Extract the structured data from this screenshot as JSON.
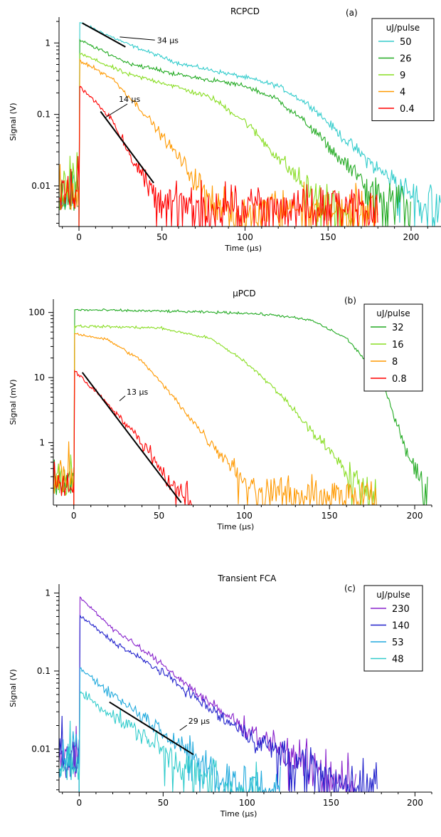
{
  "chart_data": [
    {
      "type": "line",
      "title": "RCPCD",
      "panel_label": "(a)",
      "xlabel": "Time (µs)",
      "ylabel": "Signal (V)",
      "xlim": [
        -12,
        218
      ],
      "ylim": [
        0.0027,
        2.3
      ],
      "yscale": "log",
      "x_ticks": [
        0,
        50,
        100,
        150,
        200
      ],
      "y_ticks": [
        {
          "value": 0.01,
          "label": "0.01"
        },
        {
          "value": 0.1,
          "label": "0.1"
        },
        {
          "value": 1,
          "label": "1"
        }
      ],
      "legend": {
        "title": "uJ/pulse",
        "placement": "top-right"
      },
      "noise_floor": 0.0045,
      "series": [
        {
          "name": "50",
          "color": "#33cccc",
          "x_end": 218,
          "points": [
            [
              0,
              1.95
            ],
            [
              30,
              0.95
            ],
            [
              60,
              0.52
            ],
            [
              100,
              0.33
            ],
            [
              120,
              0.25
            ],
            [
              140,
              0.13
            ],
            [
              160,
              0.045
            ],
            [
              180,
              0.017
            ],
            [
              200,
              0.008
            ],
            [
              218,
              0.005
            ]
          ]
        },
        {
          "name": "26",
          "color": "#22aa22",
          "x_end": 200,
          "points": [
            [
              0,
              1.1
            ],
            [
              30,
              0.52
            ],
            [
              60,
              0.36
            ],
            [
              100,
              0.25
            ],
            [
              120,
              0.16
            ],
            [
              140,
              0.065
            ],
            [
              160,
              0.02
            ],
            [
              180,
              0.008
            ],
            [
              200,
              0.005
            ]
          ]
        },
        {
          "name": "9",
          "color": "#88dd22",
          "x_end": 165,
          "points": [
            [
              0,
              0.72
            ],
            [
              30,
              0.36
            ],
            [
              50,
              0.28
            ],
            [
              80,
              0.17
            ],
            [
              100,
              0.08
            ],
            [
              120,
              0.025
            ],
            [
              140,
              0.008
            ],
            [
              155,
              0.004
            ],
            [
              165,
              0.003
            ]
          ]
        },
        {
          "name": "4",
          "color": "#ff9900",
          "x_end": 180,
          "points": [
            [
              0,
              0.58
            ],
            [
              20,
              0.32
            ],
            [
              40,
              0.1
            ],
            [
              60,
              0.025
            ],
            [
              70,
              0.012
            ],
            [
              80,
              0.007
            ],
            [
              90,
              0.005
            ]
          ]
        },
        {
          "name": "0.4",
          "color": "#ff0000",
          "x_end": 180,
          "points": [
            [
              0,
              0.25
            ],
            [
              10,
              0.15
            ],
            [
              20,
              0.085
            ],
            [
              30,
              0.03
            ],
            [
              40,
              0.012
            ],
            [
              50,
              0.006
            ]
          ]
        }
      ],
      "fits": [
        {
          "label": "34 µs",
          "x1": 2,
          "y1": 1.9,
          "x2": 28,
          "y2": 0.88,
          "label_x": 47,
          "label_y": 1.0
        },
        {
          "label": "14 µs",
          "x1": 13,
          "y1": 0.11,
          "x2": 45,
          "y2": 0.011,
          "label_x": 24,
          "label_y": 0.15
        }
      ]
    },
    {
      "type": "line",
      "title": "µPCD",
      "panel_label": "(b)",
      "xlabel": "Time (µs)",
      "ylabel": "Signal (mV)",
      "xlim": [
        -12,
        210
      ],
      "ylim": [
        0.11,
        160
      ],
      "yscale": "log",
      "x_ticks": [
        0,
        50,
        100,
        150,
        200
      ],
      "y_ticks": [
        {
          "value": 1,
          "label": "1"
        },
        {
          "value": 10,
          "label": "10"
        },
        {
          "value": 100,
          "label": "100"
        }
      ],
      "legend": {
        "title": "uJ/pulse",
        "placement": "top-right"
      },
      "noise_floor": 0.15,
      "series": [
        {
          "name": "32",
          "color": "#22aa22",
          "x_end": 208,
          "points": [
            [
              0,
              110
            ],
            [
              50,
              105
            ],
            [
              100,
              98
            ],
            [
              120,
              90
            ],
            [
              140,
              75
            ],
            [
              160,
              40
            ],
            [
              180,
              10
            ],
            [
              195,
              0.8
            ],
            [
              200,
              0.4
            ],
            [
              208,
              0.12
            ]
          ]
        },
        {
          "name": "16",
          "color": "#88dd22",
          "x_end": 178,
          "points": [
            [
              0,
              62
            ],
            [
              50,
              58
            ],
            [
              80,
              40
            ],
            [
              100,
              18
            ],
            [
              120,
              6
            ],
            [
              140,
              1.5
            ],
            [
              160,
              0.35
            ],
            [
              175,
              0.15
            ]
          ]
        },
        {
          "name": "8",
          "color": "#ff9900",
          "x_end": 178,
          "points": [
            [
              0,
              48
            ],
            [
              20,
              38
            ],
            [
              40,
              18
            ],
            [
              60,
              4.5
            ],
            [
              80,
              1.0
            ],
            [
              100,
              0.3
            ],
            [
              110,
              0.18
            ]
          ]
        },
        {
          "name": "0.8",
          "color": "#ff0000",
          "x_end": 70,
          "points": [
            [
              0,
              13
            ],
            [
              20,
              4
            ],
            [
              40,
              1
            ],
            [
              60,
              0.2
            ],
            [
              70,
              0.11
            ]
          ]
        }
      ],
      "fits": [
        {
          "label": "13 µs",
          "x1": 5,
          "y1": 12,
          "x2": 63,
          "y2": 0.12,
          "label_x": 31,
          "label_y": 5.5
        }
      ]
    },
    {
      "type": "line",
      "title": "Transient FCA",
      "panel_label": "(c)",
      "xlabel": "Time (µs)",
      "ylabel": "Signal (V)",
      "xlim": [
        -12,
        210
      ],
      "ylim": [
        0.0028,
        1.3
      ],
      "yscale": "log",
      "x_ticks": [
        0,
        50,
        100,
        150,
        200
      ],
      "y_ticks": [
        {
          "value": 0.01,
          "label": "0.01"
        },
        {
          "value": 0.1,
          "label": "0.1"
        },
        {
          "value": 1,
          "label": "1"
        }
      ],
      "legend": {
        "title": "uJ/pulse",
        "placement": "top-right"
      },
      "noise_floor": 0.004,
      "series": [
        {
          "name": "230",
          "color": "#8822cc",
          "x_end": 165,
          "points": [
            [
              0,
              0.9
            ],
            [
              20,
              0.35
            ],
            [
              50,
              0.12
            ],
            [
              80,
              0.035
            ],
            [
              100,
              0.018
            ],
            [
              130,
              0.008
            ],
            [
              160,
              0.004
            ]
          ]
        },
        {
          "name": "140",
          "color": "#2222cc",
          "x_end": 178,
          "points": [
            [
              0,
              0.52
            ],
            [
              20,
              0.24
            ],
            [
              50,
              0.095
            ],
            [
              80,
              0.03
            ],
            [
              100,
              0.015
            ],
            [
              130,
              0.007
            ],
            [
              170,
              0.003
            ]
          ]
        },
        {
          "name": "53",
          "color": "#22aadd",
          "x_end": 120,
          "points": [
            [
              0,
              0.11
            ],
            [
              20,
              0.05
            ],
            [
              50,
              0.017
            ],
            [
              70,
              0.008
            ],
            [
              90,
              0.004
            ],
            [
              120,
              0.003
            ]
          ]
        },
        {
          "name": "48",
          "color": "#33cccc",
          "x_end": 110,
          "points": [
            [
              0,
              0.055
            ],
            [
              20,
              0.027
            ],
            [
              50,
              0.01
            ],
            [
              70,
              0.005
            ],
            [
              90,
              0.003
            ],
            [
              110,
              0.003
            ]
          ]
        }
      ],
      "fits": [
        {
          "label": "29 µs",
          "x1": 18,
          "y1": 0.04,
          "x2": 68,
          "y2": 0.0085,
          "label_x": 65,
          "label_y": 0.021
        }
      ]
    }
  ]
}
